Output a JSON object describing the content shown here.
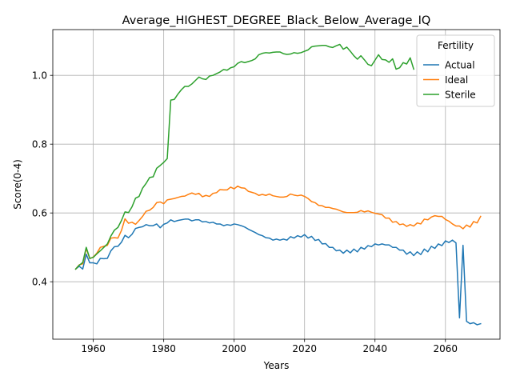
{
  "chart_data": {
    "type": "line",
    "title": "Average_HIGHEST_DEGREE_Black_Below_Average_IQ",
    "xlabel": "Years",
    "ylabel": "Score(0-4)",
    "xlim": [
      1948.5,
      2075.5
    ],
    "ylim": [
      0.233,
      1.133
    ],
    "xticks": [
      1960,
      1980,
      2000,
      2020,
      2040,
      2060
    ],
    "yticks": [
      0.4,
      0.6,
      0.8,
      1.0
    ],
    "xtick_labels": [
      "1960",
      "1980",
      "2000",
      "2020",
      "2040",
      "2060"
    ],
    "ytick_labels": [
      "0.4",
      "0.6",
      "0.8",
      "1.0"
    ],
    "grid": true,
    "legend": {
      "title": "Fertility",
      "position": "top-right"
    },
    "series": [
      {
        "name": "Actual",
        "color": "#1f77b4",
        "x": [
          1955,
          1956,
          1957,
          1958,
          1959,
          1960,
          1961,
          1962,
          1963,
          1964,
          1965,
          1966,
          1967,
          1968,
          1969,
          1970,
          1971,
          1972,
          1973,
          1974,
          1975,
          1976,
          1977,
          1978,
          1979,
          1980,
          1981,
          1982,
          1983,
          1984,
          1985,
          1986,
          1987,
          1988,
          1989,
          1990,
          1991,
          1992,
          1993,
          1994,
          1995,
          1996,
          1997,
          1998,
          1999,
          2000,
          2001,
          2002,
          2003,
          2004,
          2005,
          2006,
          2007,
          2008,
          2009,
          2010,
          2011,
          2012,
          2013,
          2014,
          2015,
          2016,
          2017,
          2018,
          2019,
          2020,
          2021,
          2022,
          2023,
          2024,
          2025,
          2026,
          2027,
          2028,
          2029,
          2030,
          2031,
          2032,
          2033,
          2034,
          2035,
          2036,
          2037,
          2038,
          2039,
          2040,
          2041,
          2042,
          2043,
          2044,
          2045,
          2046,
          2047,
          2048,
          2049,
          2050,
          2051,
          2052,
          2053,
          2054,
          2055,
          2056,
          2057,
          2058,
          2059,
          2060,
          2061,
          2062,
          2063,
          2064,
          2065,
          2066,
          2067,
          2068,
          2069,
          2070
        ],
        "values": [
          0.437,
          0.445,
          0.437,
          0.48,
          0.455,
          0.455,
          0.452,
          0.468,
          0.467,
          0.468,
          0.49,
          0.502,
          0.503,
          0.515,
          0.535,
          0.528,
          0.538,
          0.555,
          0.558,
          0.56,
          0.566,
          0.563,
          0.563,
          0.568,
          0.557,
          0.567,
          0.571,
          0.58,
          0.575,
          0.578,
          0.58,
          0.582,
          0.582,
          0.577,
          0.58,
          0.58,
          0.574,
          0.575,
          0.571,
          0.573,
          0.568,
          0.568,
          0.563,
          0.566,
          0.564,
          0.568,
          0.566,
          0.563,
          0.559,
          0.553,
          0.548,
          0.543,
          0.537,
          0.534,
          0.528,
          0.527,
          0.521,
          0.524,
          0.521,
          0.524,
          0.521,
          0.531,
          0.527,
          0.534,
          0.53,
          0.537,
          0.527,
          0.532,
          0.52,
          0.523,
          0.51,
          0.511,
          0.5,
          0.5,
          0.49,
          0.492,
          0.483,
          0.492,
          0.484,
          0.495,
          0.487,
          0.5,
          0.495,
          0.505,
          0.502,
          0.51,
          0.507,
          0.51,
          0.507,
          0.507,
          0.5,
          0.5,
          0.492,
          0.492,
          0.48,
          0.487,
          0.476,
          0.487,
          0.479,
          0.495,
          0.487,
          0.503,
          0.497,
          0.51,
          0.505,
          0.519,
          0.514,
          0.521,
          0.513,
          0.295,
          0.506,
          0.285,
          0.278,
          0.281,
          0.275,
          0.278
        ]
      },
      {
        "name": "Ideal",
        "color": "#ff7f0e",
        "x": [
          1955,
          1956,
          1957,
          1958,
          1959,
          1960,
          1961,
          1962,
          1963,
          1964,
          1965,
          1966,
          1967,
          1968,
          1969,
          1970,
          1971,
          1972,
          1973,
          1974,
          1975,
          1976,
          1977,
          1978,
          1979,
          1980,
          1981,
          1982,
          1983,
          1984,
          1985,
          1986,
          1987,
          1988,
          1989,
          1990,
          1991,
          1992,
          1993,
          1994,
          1995,
          1996,
          1997,
          1998,
          1999,
          2000,
          2001,
          2002,
          2003,
          2004,
          2005,
          2006,
          2007,
          2008,
          2009,
          2010,
          2011,
          2012,
          2013,
          2014,
          2015,
          2016,
          2017,
          2018,
          2019,
          2020,
          2021,
          2022,
          2023,
          2024,
          2025,
          2026,
          2027,
          2028,
          2029,
          2030,
          2031,
          2032,
          2033,
          2034,
          2035,
          2036,
          2037,
          2038,
          2039,
          2040,
          2041,
          2042,
          2043,
          2044,
          2045,
          2046,
          2047,
          2048,
          2049,
          2050,
          2051,
          2052,
          2053,
          2054,
          2055,
          2056,
          2057,
          2058,
          2059,
          2060,
          2061,
          2062,
          2063,
          2064,
          2065,
          2066,
          2067,
          2068,
          2069,
          2070
        ],
        "values": [
          0.437,
          0.449,
          0.452,
          0.497,
          0.467,
          0.472,
          0.483,
          0.5,
          0.503,
          0.506,
          0.527,
          0.528,
          0.527,
          0.549,
          0.583,
          0.57,
          0.573,
          0.567,
          0.578,
          0.59,
          0.605,
          0.608,
          0.616,
          0.63,
          0.632,
          0.627,
          0.638,
          0.64,
          0.642,
          0.645,
          0.648,
          0.649,
          0.654,
          0.658,
          0.654,
          0.657,
          0.647,
          0.651,
          0.648,
          0.657,
          0.659,
          0.668,
          0.667,
          0.667,
          0.675,
          0.67,
          0.678,
          0.673,
          0.672,
          0.663,
          0.66,
          0.657,
          0.651,
          0.654,
          0.651,
          0.655,
          0.65,
          0.648,
          0.646,
          0.646,
          0.648,
          0.655,
          0.652,
          0.65,
          0.652,
          0.648,
          0.642,
          0.633,
          0.63,
          0.622,
          0.621,
          0.616,
          0.616,
          0.613,
          0.611,
          0.607,
          0.603,
          0.601,
          0.601,
          0.601,
          0.602,
          0.607,
          0.603,
          0.606,
          0.602,
          0.599,
          0.597,
          0.595,
          0.585,
          0.585,
          0.573,
          0.575,
          0.566,
          0.568,
          0.561,
          0.566,
          0.562,
          0.571,
          0.568,
          0.582,
          0.58,
          0.588,
          0.592,
          0.59,
          0.59,
          0.581,
          0.576,
          0.568,
          0.562,
          0.562,
          0.554,
          0.565,
          0.559,
          0.575,
          0.571,
          0.59
        ]
      },
      {
        "name": "Sterile",
        "color": "#2ca02c",
        "x": [
          1955,
          1956,
          1957,
          1958,
          1959,
          1960,
          1961,
          1962,
          1963,
          1964,
          1965,
          1966,
          1967,
          1968,
          1969,
          1970,
          1971,
          1972,
          1973,
          1974,
          1975,
          1976,
          1977,
          1978,
          1979,
          1980,
          1981,
          1982,
          1983,
          1984,
          1985,
          1986,
          1987,
          1988,
          1989,
          1990,
          1991,
          1992,
          1993,
          1994,
          1995,
          1996,
          1997,
          1998,
          1999,
          2000,
          2001,
          2002,
          2003,
          2004,
          2005,
          2006,
          2007,
          2008,
          2009,
          2010,
          2011,
          2012,
          2013,
          2014,
          2015,
          2016,
          2017,
          2018,
          2019,
          2020,
          2021,
          2022,
          2023,
          2024,
          2025,
          2026,
          2027,
          2028,
          2029,
          2030,
          2031,
          2032,
          2033,
          2034,
          2035,
          2036,
          2037,
          2038,
          2039,
          2040,
          2041,
          2042,
          2043,
          2044,
          2045,
          2046,
          2047,
          2048,
          2049,
          2050,
          2051
        ],
        "values": [
          0.437,
          0.448,
          0.456,
          0.5,
          0.468,
          0.471,
          0.481,
          0.49,
          0.5,
          0.51,
          0.533,
          0.55,
          0.558,
          0.578,
          0.603,
          0.601,
          0.618,
          0.643,
          0.648,
          0.672,
          0.686,
          0.703,
          0.705,
          0.73,
          0.738,
          0.747,
          0.758,
          0.928,
          0.93,
          0.945,
          0.958,
          0.968,
          0.968,
          0.975,
          0.985,
          0.995,
          0.99,
          0.988,
          0.998,
          1.0,
          1.005,
          1.01,
          1.017,
          1.015,
          1.022,
          1.025,
          1.035,
          1.04,
          1.037,
          1.04,
          1.043,
          1.048,
          1.06,
          1.064,
          1.066,
          1.065,
          1.067,
          1.068,
          1.068,
          1.063,
          1.061,
          1.062,
          1.066,
          1.064,
          1.066,
          1.07,
          1.074,
          1.083,
          1.085,
          1.086,
          1.087,
          1.087,
          1.083,
          1.081,
          1.086,
          1.09,
          1.076,
          1.082,
          1.07,
          1.057,
          1.047,
          1.057,
          1.045,
          1.032,
          1.028,
          1.044,
          1.06,
          1.046,
          1.045,
          1.038,
          1.048,
          1.018,
          1.022,
          1.037,
          1.033,
          1.051,
          1.018
        ]
      }
    ]
  }
}
